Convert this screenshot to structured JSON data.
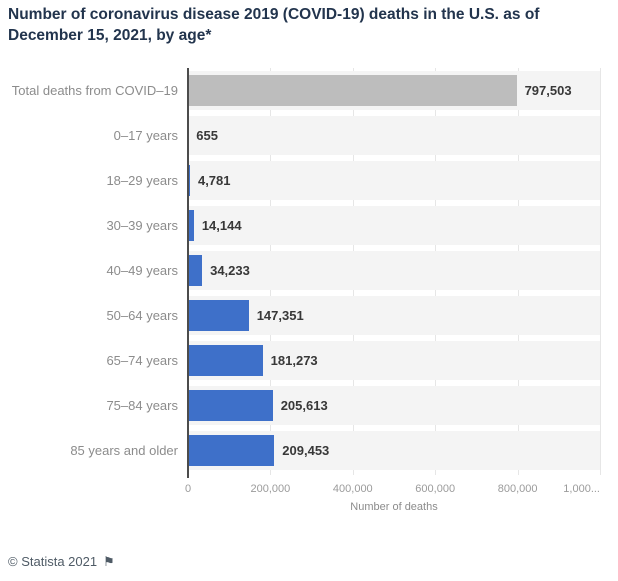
{
  "title": "Number of coronavirus disease 2019 (COVID-19) deaths in the U.S. as of December 15, 2021, by age*",
  "footer": {
    "copyright": "© Statista 2021",
    "flag_icon": "⚑"
  },
  "colors": {
    "bar_blue": "#3e70c9",
    "bar_gray": "#bdbdbd",
    "stripe": "#f4f4f4",
    "gridline": "#e6e6e6",
    "axis_line": "#4c4c4c",
    "title_text": "#22344d",
    "category_label": "#8c8c8c",
    "value_label": "#383838",
    "tick_label": "#9b9b9b"
  },
  "chart_data": {
    "type": "bar",
    "orientation": "horizontal",
    "title": "Number of coronavirus disease 2019 (COVID-19) deaths in the U.S. as of December 15, 2021, by age*",
    "xlabel": "Number of deaths",
    "ylabel": "",
    "xlim": [
      0,
      1000000
    ],
    "grid": true,
    "legend": false,
    "categories": [
      "Total deaths from COVID–19",
      "0–17 years",
      "18–29 years",
      "30–39 years",
      "40–49 years",
      "50–64 years",
      "65–74 years",
      "75–84 years",
      "85 years and older"
    ],
    "values": [
      797503,
      655,
      4781,
      14144,
      34233,
      147351,
      181273,
      205613,
      209453
    ],
    "value_labels": [
      "797,503",
      "655",
      "4,781",
      "14,144",
      "34,233",
      "147,351",
      "181,273",
      "205,613",
      "209,453"
    ],
    "bar_color_keys": [
      "bar_gray",
      "bar_blue",
      "bar_blue",
      "bar_blue",
      "bar_blue",
      "bar_blue",
      "bar_blue",
      "bar_blue",
      "bar_blue"
    ],
    "xticks": [
      {
        "value": 0,
        "label": "0"
      },
      {
        "value": 200000,
        "label": "200,000"
      },
      {
        "value": 400000,
        "label": "400,000"
      },
      {
        "value": 600000,
        "label": "600,000"
      },
      {
        "value": 800000,
        "label": "800,000"
      },
      {
        "value": 1000000,
        "label": "1,000..."
      }
    ]
  }
}
